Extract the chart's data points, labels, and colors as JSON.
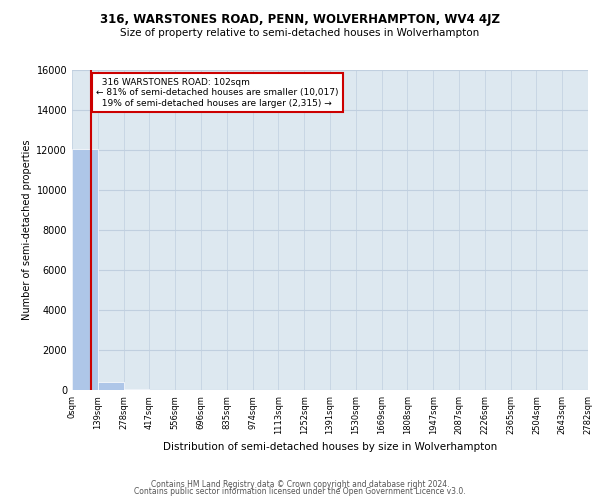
{
  "title_line1": "316, WARSTONES ROAD, PENN, WOLVERHAMPTON, WV4 4JZ",
  "title_line2": "Size of property relative to semi-detached houses in Wolverhampton",
  "xlabel": "Distribution of semi-detached houses by size in Wolverhampton",
  "ylabel": "Number of semi-detached properties",
  "footer_line1": "Contains HM Land Registry data © Crown copyright and database right 2024.",
  "footer_line2": "Contains public sector information licensed under the Open Government Licence v3.0.",
  "property_size": 102,
  "property_label": "316 WARSTONES ROAD: 102sqm",
  "pct_smaller": 81,
  "count_smaller": 10017,
  "pct_larger": 19,
  "count_larger": 2315,
  "bin_edges": [
    0,
    139,
    278,
    417,
    556,
    696,
    835,
    974,
    1113,
    1252,
    1391,
    1530,
    1669,
    1808,
    1947,
    2087,
    2226,
    2365,
    2504,
    2643,
    2782
  ],
  "bin_labels": [
    "0sqm",
    "139sqm",
    "278sqm",
    "417sqm",
    "556sqm",
    "696sqm",
    "835sqm",
    "974sqm",
    "1113sqm",
    "1252sqm",
    "1391sqm",
    "1530sqm",
    "1669sqm",
    "1808sqm",
    "1947sqm",
    "2087sqm",
    "2226sqm",
    "2365sqm",
    "2504sqm",
    "2643sqm",
    "2782sqm"
  ],
  "bar_heights": [
    12050,
    400,
    30,
    10,
    5,
    3,
    2,
    1,
    1,
    1,
    1,
    1,
    0,
    0,
    0,
    0,
    0,
    0,
    0,
    0
  ],
  "bar_color": "#aec6e8",
  "bar_edge_color": "white",
  "grid_color": "#c0cfdf",
  "bg_color": "#dde8f0",
  "line_color": "#cc0000",
  "annotation_box_color": "#cc0000",
  "ylim": [
    0,
    16000
  ],
  "yticks": [
    0,
    2000,
    4000,
    6000,
    8000,
    10000,
    12000,
    14000,
    16000
  ]
}
